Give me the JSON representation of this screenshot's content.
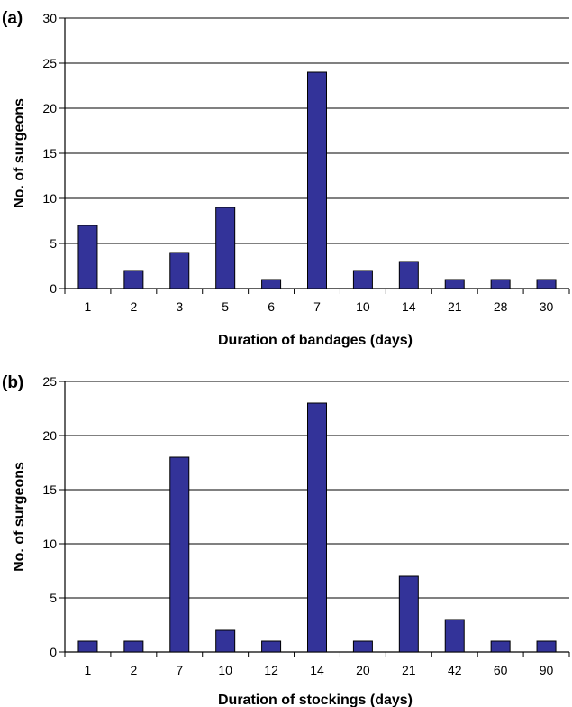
{
  "chart_data": [
    {
      "type": "bar",
      "panel_label": "(a)",
      "categories": [
        "1",
        "2",
        "3",
        "5",
        "6",
        "7",
        "10",
        "14",
        "21",
        "28",
        "30"
      ],
      "values": [
        7,
        2,
        4,
        9,
        1,
        24,
        2,
        3,
        1,
        1,
        1
      ],
      "xlabel": "Duration of bandages (days)",
      "ylabel": "No. of surgeons",
      "ylim": [
        0,
        30
      ],
      "yticks": [
        0,
        5,
        10,
        15,
        20,
        25,
        30
      ],
      "grid": "horizontal",
      "bar_color": "#333399"
    },
    {
      "type": "bar",
      "panel_label": "(b)",
      "categories": [
        "1",
        "2",
        "7",
        "10",
        "12",
        "14",
        "20",
        "21",
        "42",
        "60",
        "90"
      ],
      "values": [
        1,
        1,
        18,
        2,
        1,
        23,
        1,
        7,
        3,
        1,
        1
      ],
      "xlabel": "Duration of stockings (days)",
      "ylabel": "No. of surgeons",
      "ylim": [
        0,
        25
      ],
      "yticks": [
        0,
        5,
        10,
        15,
        20,
        25
      ],
      "grid": "horizontal",
      "bar_color": "#333399"
    }
  ]
}
